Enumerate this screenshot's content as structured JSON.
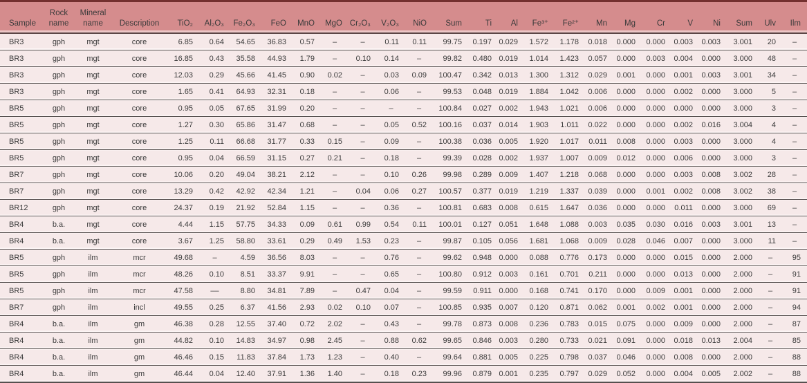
{
  "colors": {
    "header-bg": "#d58c8d",
    "row-bg": "#f6e9e9",
    "top-border": "#73302f",
    "row-line": "#56504f",
    "text": "#3a3a3a"
  },
  "table": {
    "columns": [
      "Sample",
      "Rock name",
      "Mineral name",
      "Description",
      "TiO₂",
      "Al₂O₃",
      "Fe₂O₃",
      "FeO",
      "MnO",
      "MgO",
      "Cr₂O₃",
      "V₂O₃",
      "NiO",
      "Sum",
      "Ti",
      "Al",
      "Fe³⁺",
      "Fe²⁺",
      "Mn",
      "Mg",
      "Cr",
      "V",
      "Ni",
      "Sum",
      "Ulv",
      "Ilm"
    ],
    "rows": [
      [
        "BR3",
        "gph",
        "mgt",
        "core",
        "6.85",
        "0.64",
        "54.65",
        "36.83",
        "0.57",
        "–",
        "–",
        "0.11",
        "0.11",
        "99.75",
        "0.197",
        "0.029",
        "1.572",
        "1.178",
        "0.018",
        "0.000",
        "0.000",
        "0.003",
        "0.003",
        "3.001",
        "20",
        "–"
      ],
      [
        "BR3",
        "gph",
        "mgt",
        "core",
        "16.85",
        "0.43",
        "35.58",
        "44.93",
        "1.79",
        "–",
        "0.10",
        "0.14",
        "–",
        "99.82",
        "0.480",
        "0.019",
        "1.014",
        "1.423",
        "0.057",
        "0.000",
        "0.003",
        "0.004",
        "0.000",
        "3.000",
        "48",
        "–"
      ],
      [
        "BR3",
        "gph",
        "mgt",
        "core",
        "12.03",
        "0.29",
        "45.66",
        "41.45",
        "0.90",
        "0.02",
        "–",
        "0.03",
        "0.09",
        "100.47",
        "0.342",
        "0.013",
        "1.300",
        "1.312",
        "0.029",
        "0.001",
        "0.000",
        "0.001",
        "0.003",
        "3.001",
        "34",
        "–"
      ],
      [
        "BR3",
        "gph",
        "mgt",
        "core",
        "1.65",
        "0.41",
        "64.93",
        "32.31",
        "0.18",
        "–",
        "–",
        "0.06",
        "–",
        "99.53",
        "0.048",
        "0.019",
        "1.884",
        "1.042",
        "0.006",
        "0.000",
        "0.000",
        "0.002",
        "0.000",
        "3.000",
        "5",
        "–"
      ],
      [
        "BR5",
        "gph",
        "mgt",
        "core",
        "0.95",
        "0.05",
        "67.65",
        "31.99",
        "0.20",
        "–",
        "–",
        "–",
        "–",
        "100.84",
        "0.027",
        "0.002",
        "1.943",
        "1.021",
        "0.006",
        "0.000",
        "0.000",
        "0.000",
        "0.000",
        "3.000",
        "3",
        "–"
      ],
      [
        "BR5",
        "gph",
        "mgt",
        "core",
        "1.27",
        "0.30",
        "65.86",
        "31.47",
        "0.68",
        "–",
        "–",
        "0.05",
        "0.52",
        "100.16",
        "0.037",
        "0.014",
        "1.903",
        "1.011",
        "0.022",
        "0.000",
        "0.000",
        "0.002",
        "0.016",
        "3.004",
        "4",
        "–"
      ],
      [
        "BR5",
        "gph",
        "mgt",
        "core",
        "1.25",
        "0.11",
        "66.68",
        "31.77",
        "0.33",
        "0.15",
        "–",
        "0.09",
        "–",
        "100.38",
        "0.036",
        "0.005",
        "1.920",
        "1.017",
        "0.011",
        "0.008",
        "0.000",
        "0.003",
        "0.000",
        "3.000",
        "4",
        "–"
      ],
      [
        "BR5",
        "gph",
        "mgt",
        "core",
        "0.95",
        "0.04",
        "66.59",
        "31.15",
        "0.27",
        "0.21",
        "–",
        "0.18",
        "–",
        "99.39",
        "0.028",
        "0.002",
        "1.937",
        "1.007",
        "0.009",
        "0.012",
        "0.000",
        "0.006",
        "0.000",
        "3.000",
        "3",
        "–"
      ],
      [
        "BR7",
        "gph",
        "mgt",
        "core",
        "10.06",
        "0.20",
        "49.04",
        "38.21",
        "2.12",
        "–",
        "–",
        "0.10",
        "0.26",
        "99.98",
        "0.289",
        "0.009",
        "1.407",
        "1.218",
        "0.068",
        "0.000",
        "0.000",
        "0.003",
        "0.008",
        "3.002",
        "28",
        "–"
      ],
      [
        "BR7",
        "gph",
        "mgt",
        "core",
        "13.29",
        "0.42",
        "42.92",
        "42.34",
        "1.21",
        "–",
        "0.04",
        "0.06",
        "0.27",
        "100.57",
        "0.377",
        "0.019",
        "1.219",
        "1.337",
        "0.039",
        "0.000",
        "0.001",
        "0.002",
        "0.008",
        "3.002",
        "38",
        "–"
      ],
      [
        "BR12",
        "gph",
        "mgt",
        "core",
        "24.37",
        "0.19",
        "21.92",
        "52.84",
        "1.15",
        "–",
        "–",
        "0.36",
        "–",
        "100.81",
        "0.683",
        "0.008",
        "0.615",
        "1.647",
        "0.036",
        "0.000",
        "0.000",
        "0.011",
        "0.000",
        "3.000",
        "69",
        "–"
      ],
      [
        "BR4",
        "b.a.",
        "mgt",
        "core",
        "4.44",
        "1.15",
        "57.75",
        "34.33",
        "0.09",
        "0.61",
        "0.99",
        "0.54",
        "0.11",
        "100.01",
        "0.127",
        "0.051",
        "1.648",
        "1.088",
        "0.003",
        "0.035",
        "0.030",
        "0.016",
        "0.003",
        "3.001",
        "13",
        "–"
      ],
      [
        "BR4",
        "b.a.",
        "mgt",
        "core",
        "3.67",
        "1.25",
        "58.80",
        "33.61",
        "0.29",
        "0.49",
        "1.53",
        "0.23",
        "–",
        "99.87",
        "0.105",
        "0.056",
        "1.681",
        "1.068",
        "0.009",
        "0.028",
        "0.046",
        "0.007",
        "0.000",
        "3.000",
        "11",
        "–"
      ],
      [
        "BR5",
        "gph",
        "ilm",
        "mcr",
        "49.68",
        "–",
        "4.59",
        "36.56",
        "8.03",
        "–",
        "–",
        "0.76",
        "–",
        "99.62",
        "0.948",
        "0.000",
        "0.088",
        "0.776",
        "0.173",
        "0.000",
        "0.000",
        "0.015",
        "0.000",
        "2.000",
        "–",
        "95"
      ],
      [
        "BR5",
        "gph",
        "ilm",
        "mcr",
        "48.26",
        "0.10",
        "8.51",
        "33.37",
        "9.91",
        "–",
        "–",
        "0.65",
        "–",
        "100.80",
        "0.912",
        "0.003",
        "0.161",
        "0.701",
        "0.211",
        "0.000",
        "0.000",
        "0.013",
        "0.000",
        "2.000",
        "–",
        "91"
      ],
      [
        "BR5",
        "gph",
        "ilm",
        "mcr",
        "47.58",
        "––",
        "8.80",
        "34.81",
        "7.89",
        "–",
        "0.47",
        "0.04",
        "–",
        "99.59",
        "0.911",
        "0.000",
        "0.168",
        "0.741",
        "0.170",
        "0.000",
        "0.009",
        "0.001",
        "0.000",
        "2.000",
        "–",
        "91"
      ],
      [
        "BR7",
        "gph",
        "ilm",
        "incl",
        "49.55",
        "0.25",
        "6.37",
        "41.56",
        "2.93",
        "0.02",
        "0.10",
        "0.07",
        "–",
        "100.85",
        "0.935",
        "0.007",
        "0.120",
        "0.871",
        "0.062",
        "0.001",
        "0.002",
        "0.001",
        "0.000",
        "2.000",
        "–",
        "94"
      ],
      [
        "BR4",
        "b.a.",
        "ilm",
        "gm",
        "46.38",
        "0.28",
        "12.55",
        "37.40",
        "0.72",
        "2.02",
        "–",
        "0.43",
        "–",
        "99.78",
        "0.873",
        "0.008",
        "0.236",
        "0.783",
        "0.015",
        "0.075",
        "0.000",
        "0.009",
        "0.000",
        "2.000",
        "–",
        "87"
      ],
      [
        "BR4",
        "b.a.",
        "ilm",
        "gm",
        "44.82",
        "0.10",
        "14.83",
        "34.97",
        "0.98",
        "2.45",
        "–",
        "0.88",
        "0.62",
        "99.65",
        "0.846",
        "0.003",
        "0.280",
        "0.733",
        "0.021",
        "0.091",
        "0.000",
        "0.018",
        "0.013",
        "2.004",
        "–",
        "85"
      ],
      [
        "BR4",
        "b.a.",
        "ilm",
        "gm",
        "46.46",
        "0.15",
        "11.83",
        "37.84",
        "1.73",
        "1.23",
        "–",
        "0.40",
        "–",
        "99.64",
        "0.881",
        "0.005",
        "0.225",
        "0.798",
        "0.037",
        "0.046",
        "0.000",
        "0.008",
        "0.000",
        "2.000",
        "–",
        "88"
      ],
      [
        "BR4",
        "b.a.",
        "ilm",
        "gm",
        "46.44",
        "0.04",
        "12.40",
        "37.91",
        "1.36",
        "1.40",
        "–",
        "0.18",
        "0.23",
        "99.96",
        "0.879",
        "0.001",
        "0.235",
        "0.797",
        "0.029",
        "0.052",
        "0.000",
        "0.004",
        "0.005",
        "2.002",
        "–",
        "88"
      ]
    ]
  }
}
